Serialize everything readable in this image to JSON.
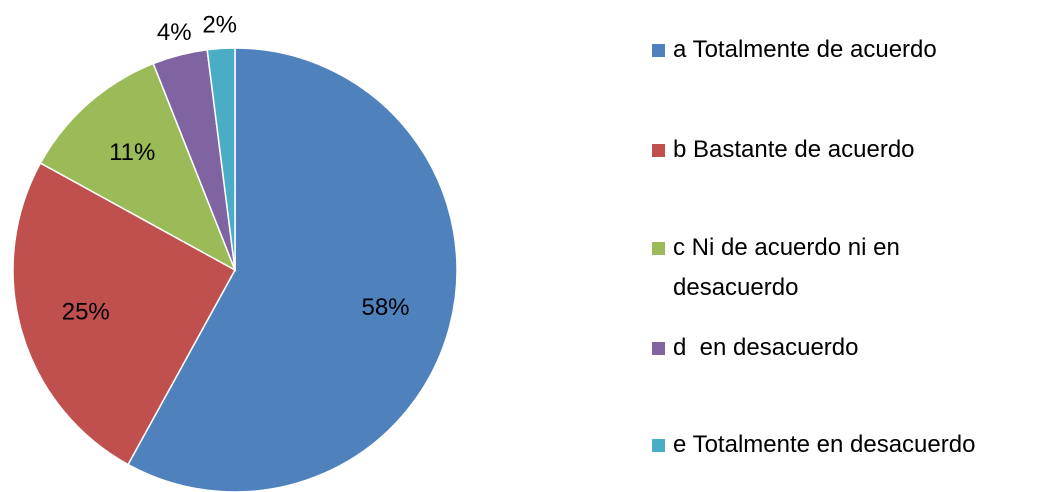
{
  "chart_data": {
    "type": "pie",
    "categories": [
      "a Totalmente de acuerdo",
      "b Bastante de acuerdo",
      "c Ni de acuerdo ni en desacuerdo",
      "d  en desacuerdo",
      "e Totalmente en desacuerdo"
    ],
    "values": [
      58,
      25,
      11,
      4,
      2
    ],
    "value_labels": [
      "58%",
      "25%",
      "11%",
      "4%",
      "2%"
    ],
    "colors": [
      "#4f81bd",
      "#c0504d",
      "#9bbb59",
      "#8064a2",
      "#4bacc6"
    ],
    "legend": "right"
  }
}
